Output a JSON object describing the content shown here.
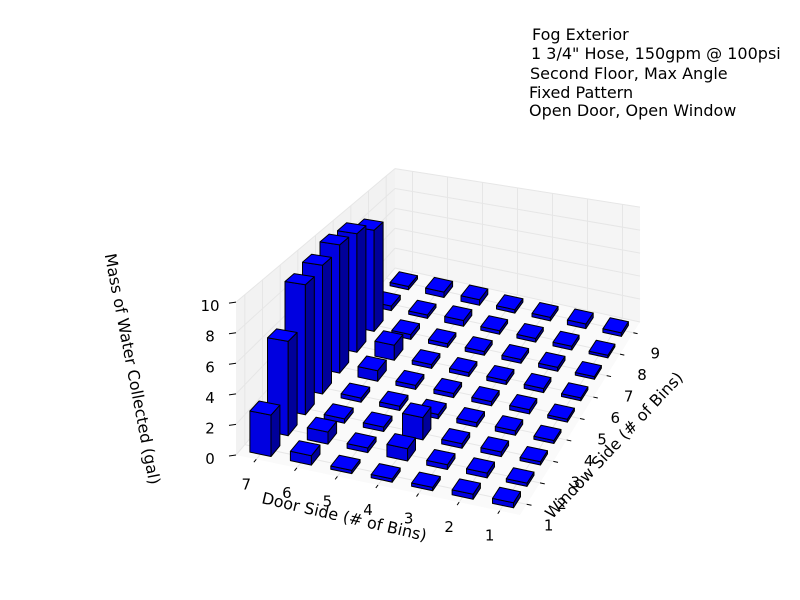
{
  "chart_data": {
    "type": "bar3d",
    "annotation": [
      "Fog Exterior",
      "1 3/4\" Hose, 150gpm @ 100psi",
      "Second Floor, Max Angle",
      "Fixed Pattern",
      "Open Door, Open Window"
    ],
    "xlabel": "Door Side (# of Bins)",
    "ylabel": "Window Side (# of Bins)",
    "zlabel": "Mass of Water Collected (gal)",
    "x_ticks": [
      "1",
      "2",
      "3",
      "4",
      "5",
      "6",
      "7"
    ],
    "y_ticks": [
      "1",
      "2",
      "3",
      "4",
      "5",
      "6",
      "7",
      "8",
      "9"
    ],
    "z_ticks": [
      "0",
      "2",
      "4",
      "6",
      "8",
      "10"
    ],
    "zlim": [
      0,
      10
    ],
    "bar_color": "#0000ff",
    "grid": true,
    "values": [
      [
        0.3,
        0.2,
        0.2,
        0.2,
        0.2,
        0.2,
        0.2,
        0.2,
        0.3
      ],
      [
        0.3,
        0.3,
        0.3,
        0.3,
        0.3,
        0.3,
        0.3,
        0.3,
        0.4
      ],
      [
        0.2,
        0.3,
        0.3,
        0.3,
        0.3,
        0.3,
        0.3,
        0.3,
        0.3
      ],
      [
        0.2,
        0.8,
        1.5,
        0.3,
        0.3,
        0.3,
        0.3,
        0.3,
        0.3
      ],
      [
        0.2,
        0.3,
        0.3,
        0.3,
        0.3,
        0.3,
        0.3,
        0.5,
        0.5
      ],
      [
        0.6,
        0.8,
        0.3,
        0.3,
        0.8,
        1.2,
        0.4,
        0.3,
        0.5
      ],
      [
        2.7,
        6.4,
        9.2,
        9.5,
        9.9,
        9.6,
        8.6,
        0.4,
        0.3
      ]
    ]
  }
}
